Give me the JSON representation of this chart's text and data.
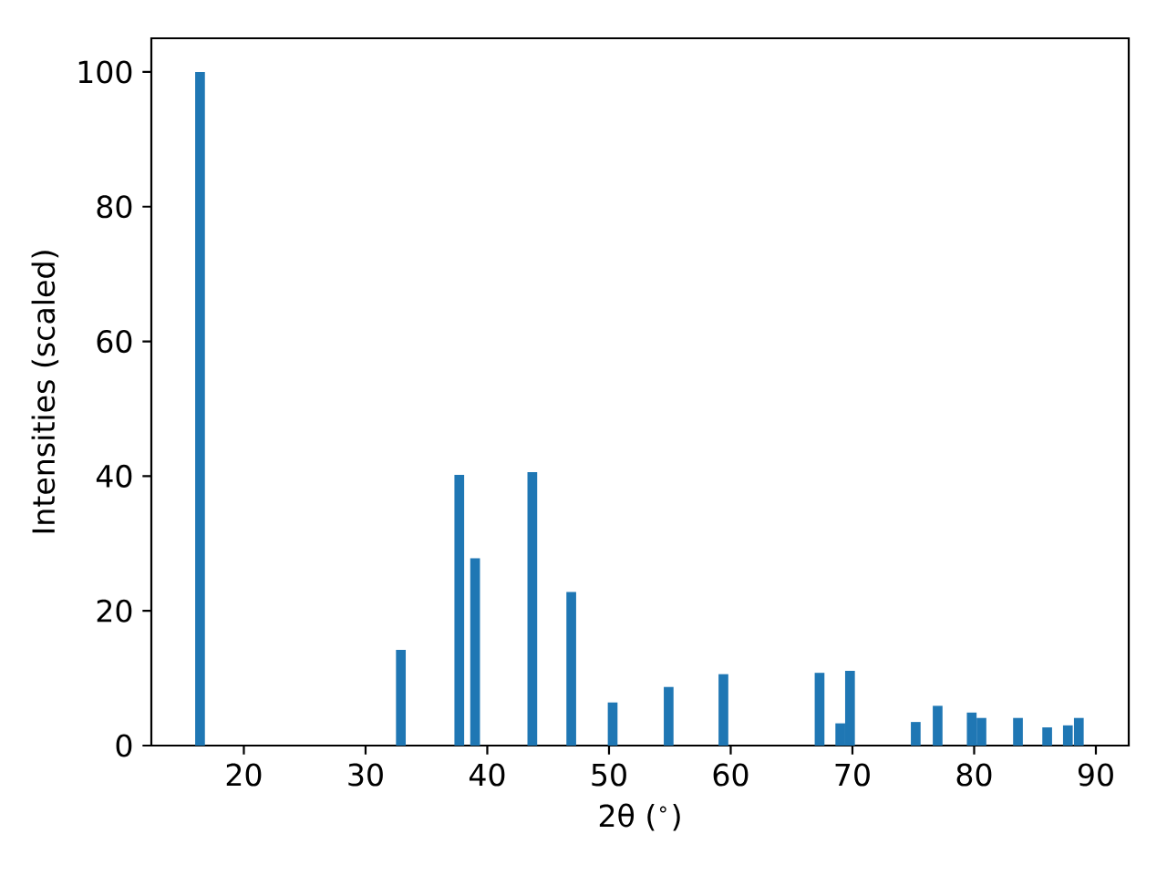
{
  "chart_data": {
    "type": "bar",
    "xlabel": "2θ ($^{∘}$)",
    "ylabel": "Intensities (scaled)",
    "x": [
      16.4,
      32.9,
      37.7,
      39.0,
      43.7,
      46.9,
      50.3,
      54.9,
      59.4,
      67.3,
      69.0,
      69.8,
      75.2,
      77.0,
      79.8,
      80.6,
      83.6,
      86.0,
      87.7,
      88.6
    ],
    "values": [
      100,
      14.2,
      40.2,
      27.8,
      40.6,
      22.8,
      6.4,
      8.7,
      10.6,
      10.8,
      3.3,
      11.1,
      3.5,
      5.9,
      4.9,
      4.1,
      4.1,
      2.7,
      3.0,
      4.1
    ],
    "color": "#1f77b4",
    "xlim": [
      12.4,
      92.7
    ],
    "ylim": [
      0,
      105
    ],
    "xticks": [
      20,
      30,
      40,
      50,
      60,
      70,
      80,
      90
    ],
    "yticks": [
      0,
      20,
      40,
      60,
      80,
      100
    ]
  }
}
